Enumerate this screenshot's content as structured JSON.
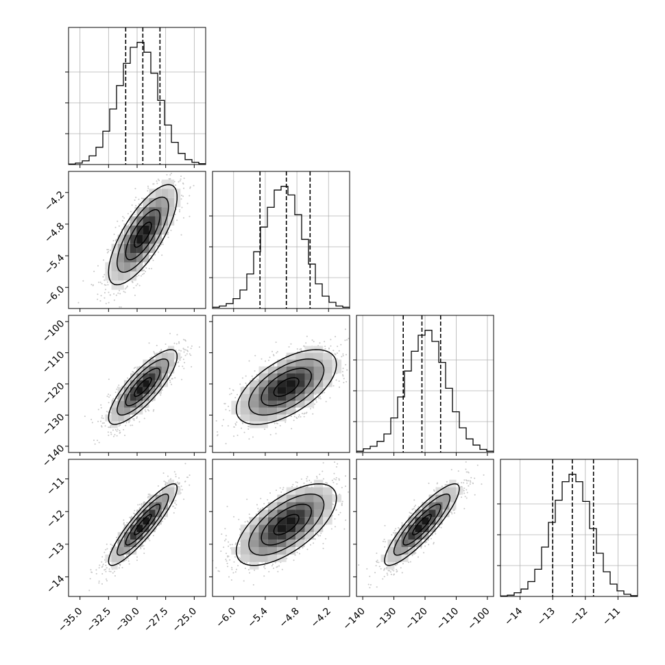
{
  "chart_data": {
    "type": "corner",
    "params": [
      {
        "range": [
          -36.0,
          -24.0
        ],
        "q16": -31.0,
        "q50": -29.5,
        "q84": -28.0,
        "ticks": [
          "−35.0",
          "−32.5",
          "−30.0",
          "−27.5",
          "−25.0"
        ],
        "tick_values": [
          -35.0,
          -32.5,
          -30.0,
          -27.5,
          -25.0
        ],
        "hist": [
          0.004,
          0.012,
          0.03,
          0.07,
          0.14,
          0.27,
          0.45,
          0.64,
          0.82,
          0.95,
          0.99,
          0.91,
          0.74,
          0.52,
          0.32,
          0.18,
          0.09,
          0.04,
          0.018,
          0.007
        ]
      },
      {
        "range": [
          -6.4,
          -3.8
        ],
        "q16": -5.5,
        "q50": -5.0,
        "q84": -4.55,
        "ticks": [
          "−6.0",
          "−5.4",
          "−4.8",
          "−4.2"
        ],
        "tick_values": [
          -6.0,
          -5.4,
          -4.8,
          -4.2
        ],
        "hist": [
          0.01,
          0.02,
          0.04,
          0.08,
          0.15,
          0.28,
          0.46,
          0.66,
          0.82,
          0.96,
          0.99,
          0.92,
          0.76,
          0.56,
          0.36,
          0.2,
          0.1,
          0.05,
          0.02,
          0.01
        ]
      },
      {
        "range": [
          -142,
          -98
        ],
        "q16": -127,
        "q50": -121,
        "q84": -115,
        "ticks": [
          "−140",
          "−130",
          "−120",
          "−110",
          "−100"
        ],
        "tick_values": [
          -140,
          -130,
          -120,
          -110,
          -100
        ],
        "hist": [
          0.01,
          0.03,
          0.05,
          0.09,
          0.15,
          0.28,
          0.45,
          0.66,
          0.82,
          0.95,
          0.99,
          0.9,
          0.73,
          0.52,
          0.33,
          0.2,
          0.11,
          0.06,
          0.025,
          0.01
        ]
      },
      {
        "range": [
          -14.6,
          -10.4
        ],
        "q16": -13.0,
        "q50": -12.4,
        "q84": -11.75,
        "ticks": [
          "−14",
          "−13",
          "−12",
          "−11"
        ],
        "tick_values": [
          -14,
          -13,
          -12,
          -11
        ],
        "hist": [
          0.004,
          0.01,
          0.03,
          0.06,
          0.12,
          0.22,
          0.4,
          0.6,
          0.78,
          0.93,
          0.99,
          0.93,
          0.77,
          0.55,
          0.35,
          0.2,
          0.1,
          0.045,
          0.018,
          0.006
        ]
      }
    ],
    "correlations": {
      "1-0": 0.75,
      "2-0": 0.82,
      "2-1": 0.6,
      "3-0": 0.9,
      "3-1": 0.65,
      "3-2": 0.88
    },
    "quantile_lines": true,
    "grid": true
  }
}
